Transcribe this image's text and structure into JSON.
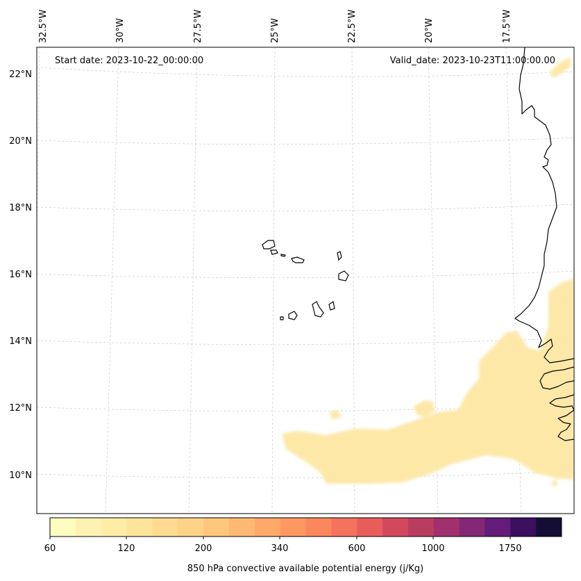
{
  "map": {
    "start_date": "Start date: 2023-10-22_00:00:00",
    "valid_date": "Valid_date: 2023-10-23T11:00:00.00",
    "lon_labels": [
      "32.5°W",
      "30°W",
      "27.5°W",
      "25°W",
      "22.5°W",
      "20°W",
      "17.5°W"
    ],
    "lat_labels": [
      "22°N",
      "20°N",
      "18°N",
      "16°N",
      "14°N",
      "12°N",
      "10°N"
    ]
  },
  "colorbar": {
    "label": "850 hPa convective available potential energy (j/Kg)",
    "tick_labels": [
      "60",
      "120",
      "200",
      "340",
      "600",
      "1000",
      "1750"
    ],
    "colors": [
      "#fcfdbf",
      "#fdf2b2",
      "#feeca7",
      "#fee49b",
      "#fedb91",
      "#fed287",
      "#fec77c",
      "#feba72",
      "#fea96a",
      "#fe9863",
      "#fb875e",
      "#f5725c",
      "#e85d5c",
      "#d4485e",
      "#b93d61",
      "#a0306e",
      "#832877",
      "#631c7a",
      "#3c0f5f",
      "#140e36"
    ]
  }
}
